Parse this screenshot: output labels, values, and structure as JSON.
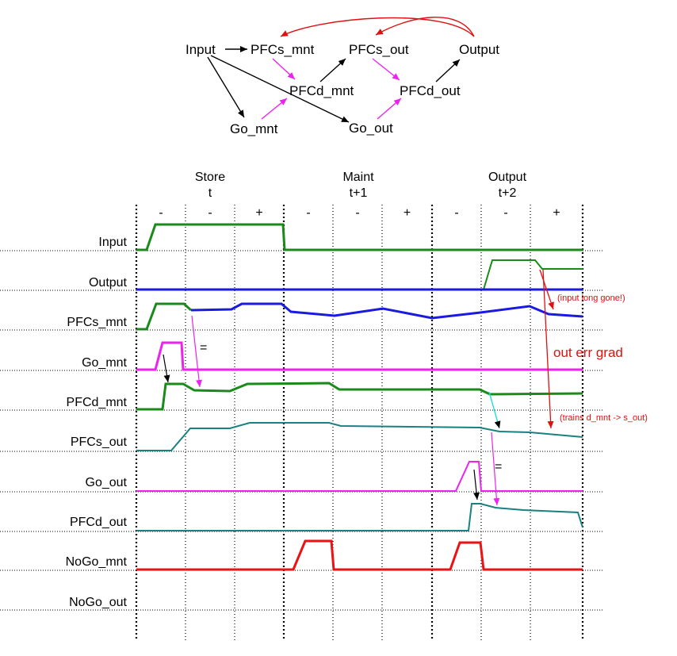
{
  "network": {
    "nodes": {
      "input": "Input",
      "pfcs_mnt": "PFCs_mnt",
      "pfcd_mnt": "PFCd_mnt",
      "go_mnt": "Go_mnt",
      "pfcs_out": "PFCs_out",
      "pfcd_out": "PFCd_out",
      "go_out": "Go_out",
      "output": "Output"
    }
  },
  "phases": [
    {
      "name": "Store",
      "time": "t",
      "signs": [
        "-",
        "-",
        "+"
      ]
    },
    {
      "name": "Maint",
      "time": "t+1",
      "signs": [
        "-",
        "-",
        "+"
      ]
    },
    {
      "name": "Output",
      "time": "t+2",
      "signs": [
        "-",
        "-",
        "+"
      ]
    }
  ],
  "rows": [
    {
      "key": "input",
      "label": "Input"
    },
    {
      "key": "output",
      "label": "Output"
    },
    {
      "key": "pfcs_mnt",
      "label": "PFCs_mnt"
    },
    {
      "key": "go_mnt",
      "label": "Go_mnt"
    },
    {
      "key": "pfcd_mnt",
      "label": "PFCd_mnt"
    },
    {
      "key": "pfcs_out",
      "label": "PFCs_out"
    },
    {
      "key": "go_out",
      "label": "Go_out"
    },
    {
      "key": "pfcd_out",
      "label": "PFCd_out"
    },
    {
      "key": "nogo_mnt",
      "label": "NoGo_mnt"
    },
    {
      "key": "nogo_out",
      "label": "NoGo_out"
    }
  ],
  "annotations": {
    "input_gone": "(input long gone!)",
    "out_err_grad": "out err grad",
    "trains": "(trains d_mnt -> s_out)",
    "equals_mnt": "=",
    "equals_out": "="
  },
  "colors": {
    "green": "#1a8a1a",
    "blue": "#1a1ae0",
    "magenta": "#ee22ee",
    "teal": "#1a8080",
    "red": "#ee1111",
    "cyan": "#22dddd"
  }
}
